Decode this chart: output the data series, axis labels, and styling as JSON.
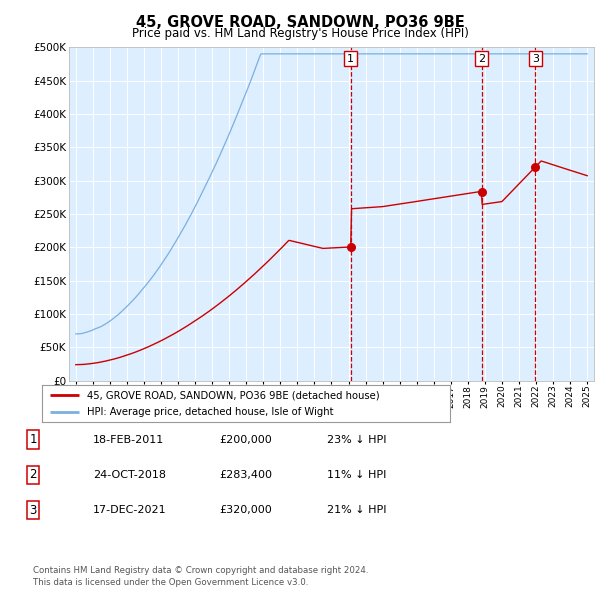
{
  "title": "45, GROVE ROAD, SANDOWN, PO36 9BE",
  "subtitle": "Price paid vs. HM Land Registry's House Price Index (HPI)",
  "ytick_values": [
    0,
    50000,
    100000,
    150000,
    200000,
    250000,
    300000,
    350000,
    400000,
    450000,
    500000
  ],
  "ylim": [
    0,
    500000
  ],
  "x_start_year": 1995,
  "x_end_year": 2025,
  "plot_bg_color": "#ddeeff",
  "line_color_hpi": "#7ab0e0",
  "line_color_price": "#cc0000",
  "t1": 2011.13,
  "t2": 2018.81,
  "t3": 2021.96,
  "p1": 200000,
  "p2": 283400,
  "p3": 320000,
  "legend_entries": [
    "45, GROVE ROAD, SANDOWN, PO36 9BE (detached house)",
    "HPI: Average price, detached house, Isle of Wight"
  ],
  "table_rows": [
    [
      "1",
      "18-FEB-2011",
      "£200,000",
      "23% ↓ HPI"
    ],
    [
      "2",
      "24-OCT-2018",
      "£283,400",
      "11% ↓ HPI"
    ],
    [
      "3",
      "17-DEC-2021",
      "£320,000",
      "21% ↓ HPI"
    ]
  ],
  "footer": "Contains HM Land Registry data © Crown copyright and database right 2024.\nThis data is licensed under the Open Government Licence v3.0."
}
